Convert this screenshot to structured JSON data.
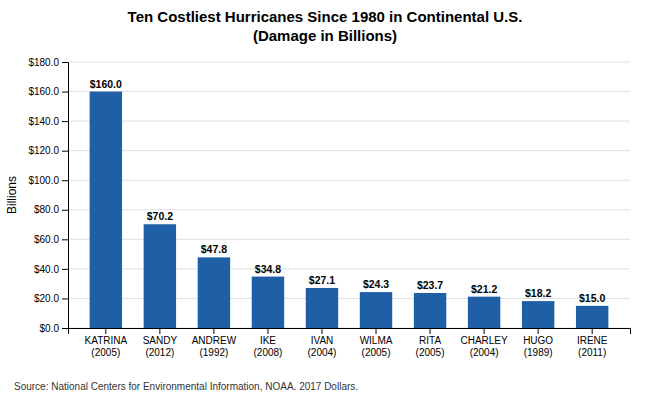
{
  "chart_data": {
    "type": "bar",
    "title": "Ten Costliest Hurricanes Since 1980 in Continental U.S.",
    "subtitle": "(Damage in Billions)",
    "y_label": "Billions",
    "categories": [
      "KATRINA\n(2005)",
      "SANDY\n(2012)",
      "ANDREW\n(1992)",
      "IKE\n(2008)",
      "IVAN\n(2004)",
      "WILMA\n(2005)",
      "RITA\n(2005)",
      "CHARLEY\n(2004)",
      "HUGO\n(1989)",
      "IRENE\n(2011)"
    ],
    "values": [
      160.0,
      70.2,
      47.8,
      34.8,
      27.1,
      24.3,
      23.7,
      21.2,
      18.2,
      15.0
    ],
    "value_labels": [
      "$160.0",
      "$70.2",
      "$47.8",
      "$34.8",
      "$27.1",
      "$24.3",
      "$23.7",
      "$21.2",
      "$18.2",
      "$15.0"
    ],
    "data_labels": true,
    "color": "#1F5FA6",
    "ylim": [
      0,
      180
    ],
    "yticks": [
      {
        "value": 0,
        "label": "$0.0"
      },
      {
        "value": 20,
        "label": "$20.0"
      },
      {
        "value": 40,
        "label": "$40.0"
      },
      {
        "value": 60,
        "label": "$60.0"
      },
      {
        "value": 80,
        "label": "$80.0"
      },
      {
        "value": 100,
        "label": "$100.0"
      },
      {
        "value": 120,
        "label": "$120.0"
      },
      {
        "value": 140,
        "label": "$140.0"
      },
      {
        "value": 160,
        "label": "$160.0"
      },
      {
        "value": 180,
        "label": "$180.0"
      }
    ],
    "grid": true,
    "annotations": [
      "Source: National Centers for Environmental Information, NOAA. 2017 Dollars."
    ]
  }
}
